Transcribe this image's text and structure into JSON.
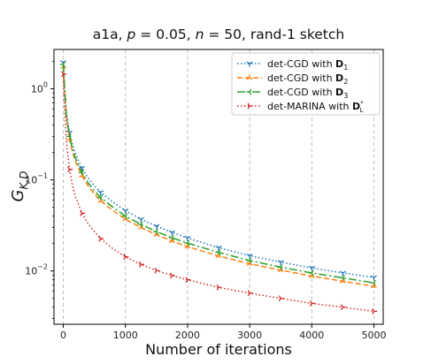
{
  "chart_data": {
    "type": "line",
    "title": "a1a, p = 0.05, n = 50, rand-1 sketch",
    "title_parts": {
      "prefix": "a1a, ",
      "p_var": "p",
      "p_value": " = 0.05, ",
      "n_var": "n",
      "n_value": " = 50, rand-1 sketch"
    },
    "xlabel": "Number of iterations",
    "ylabel": "G_{K,D}",
    "ylabel_parts": {
      "main": "G",
      "sub": "K,D"
    },
    "x_scale": "linear",
    "y_scale": "log",
    "xlim": [
      -150,
      5150
    ],
    "ylim": [
      0.0026,
      2.7
    ],
    "x_ticks": [
      0,
      1000,
      2000,
      3000,
      4000,
      5000
    ],
    "x_tick_labels": [
      "0",
      "1000",
      "2000",
      "3000",
      "4000",
      "5000"
    ],
    "y_ticks": [
      0.01,
      0.1,
      1
    ],
    "y_tick_labels": [
      {
        "base": "10",
        "exp": "−2"
      },
      {
        "base": "10",
        "exp": "−1"
      },
      {
        "base": "10",
        "exp": "0"
      }
    ],
    "grid": {
      "x": true,
      "y": false,
      "style": "dashed"
    },
    "legend_position": "top-right",
    "x": [
      0,
      20,
      50,
      100,
      150,
      200,
      300,
      400,
      500,
      600,
      800,
      1000,
      1250,
      1500,
      1750,
      2000,
      2500,
      3000,
      3500,
      4000,
      4500,
      5000
    ],
    "series": [
      {
        "name": "det-CGD with D_1",
        "legend": {
          "prefix": "det-CGD with ",
          "bold": "D",
          "sub": "1",
          "sup": ""
        },
        "color": "#1f77b4",
        "dash": "1.5 2.5",
        "marker": "tri_down",
        "values": [
          1.95,
          1.1,
          0.55,
          0.33,
          0.24,
          0.19,
          0.135,
          0.105,
          0.086,
          0.073,
          0.057,
          0.046,
          0.037,
          0.031,
          0.0265,
          0.023,
          0.018,
          0.0147,
          0.0125,
          0.0108,
          0.0095,
          0.0085
        ]
      },
      {
        "name": "det-CGD with D_2",
        "legend": {
          "prefix": "det-CGD with ",
          "bold": "D",
          "sub": "2",
          "sup": ""
        },
        "color": "#ff7f0e",
        "dash": "6 3",
        "marker": "tri_up",
        "values": [
          1.75,
          0.95,
          0.47,
          0.28,
          0.2,
          0.158,
          0.111,
          0.086,
          0.07,
          0.059,
          0.046,
          0.037,
          0.03,
          0.025,
          0.0213,
          0.0185,
          0.0146,
          0.012,
          0.0102,
          0.0088,
          0.0077,
          0.0068
        ]
      },
      {
        "name": "det-CGD with D_3",
        "legend": {
          "prefix": "det-CGD with ",
          "bold": "D",
          "sub": "3",
          "sup": ""
        },
        "color": "#2ca02c",
        "dash": "9 3 2 3",
        "marker": "tri_left",
        "values": [
          1.85,
          1.02,
          0.5,
          0.3,
          0.215,
          0.17,
          0.12,
          0.093,
          0.076,
          0.064,
          0.05,
          0.04,
          0.0325,
          0.027,
          0.0232,
          0.0202,
          0.016,
          0.013,
          0.011,
          0.0095,
          0.0084,
          0.0074
        ]
      },
      {
        "name": "det-MARINA with D*_{L^-1}",
        "legend": {
          "prefix": "det-MARINA with ",
          "bold": "D",
          "sub": "L",
          "sup": "*"
        },
        "color": "#d62728",
        "dash": "1.5 2.5",
        "marker": "tri_right",
        "values": [
          1.45,
          0.62,
          0.26,
          0.13,
          0.085,
          0.064,
          0.043,
          0.033,
          0.027,
          0.0226,
          0.0175,
          0.0143,
          0.0118,
          0.0101,
          0.0089,
          0.008,
          0.0066,
          0.0057,
          0.005,
          0.0044,
          0.004,
          0.0036
        ]
      }
    ]
  }
}
